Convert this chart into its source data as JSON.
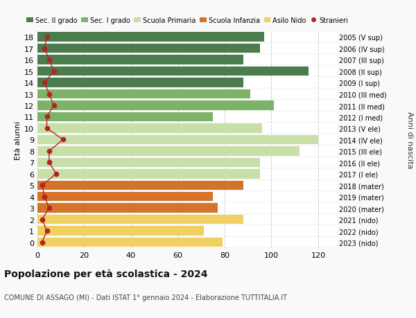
{
  "ages": [
    18,
    17,
    16,
    15,
    14,
    13,
    12,
    11,
    10,
    9,
    8,
    7,
    6,
    5,
    4,
    3,
    2,
    1,
    0
  ],
  "right_labels": [
    "2005 (V sup)",
    "2006 (IV sup)",
    "2007 (III sup)",
    "2008 (II sup)",
    "2009 (I sup)",
    "2010 (III med)",
    "2011 (II med)",
    "2012 (I med)",
    "2013 (V ele)",
    "2014 (IV ele)",
    "2015 (III ele)",
    "2016 (II ele)",
    "2017 (I ele)",
    "2018 (mater)",
    "2019 (mater)",
    "2020 (mater)",
    "2021 (nido)",
    "2022 (nido)",
    "2023 (nido)"
  ],
  "bar_values": [
    97,
    95,
    88,
    116,
    88,
    91,
    101,
    75,
    96,
    120,
    112,
    95,
    95,
    88,
    75,
    77,
    88,
    71,
    79
  ],
  "bar_colors": [
    "#4a7c4e",
    "#4a7c4e",
    "#4a7c4e",
    "#4a7c4e",
    "#4a7c4e",
    "#7db368",
    "#7db368",
    "#7db368",
    "#c8dfa8",
    "#c8dfa8",
    "#c8dfa8",
    "#c8dfa8",
    "#c8dfa8",
    "#d4742a",
    "#d4742a",
    "#d4742a",
    "#f0d060",
    "#f0d060",
    "#f0d060"
  ],
  "stranieri_values": [
    4,
    3,
    5,
    7,
    3,
    5,
    7,
    4,
    4,
    11,
    5,
    5,
    8,
    2,
    3,
    5,
    2,
    4,
    2
  ],
  "legend_labels": [
    "Sec. II grado",
    "Sec. I grado",
    "Scuola Primaria",
    "Scuola Infanzia",
    "Asilo Nido",
    "Stranieri"
  ],
  "legend_colors": [
    "#4a7c4e",
    "#7db368",
    "#c8dfa8",
    "#d4742a",
    "#f0d060",
    "#c0392b"
  ],
  "title": "Popolazione per età scolastica - 2024",
  "subtitle": "COMUNE DI ASSAGO (MI) - Dati ISTAT 1° gennaio 2024 - Elaborazione TUTTITALIA.IT",
  "ylabel": "Età alunni",
  "right_ylabel": "Anni di nascita",
  "xlim": [
    0,
    128
  ],
  "xticks": [
    0,
    20,
    40,
    60,
    80,
    100,
    120
  ],
  "background_color": "#f9f9f9",
  "bar_bg_color": "#ffffff",
  "grid_color": "#cccccc",
  "stranieri_color": "#b52222"
}
